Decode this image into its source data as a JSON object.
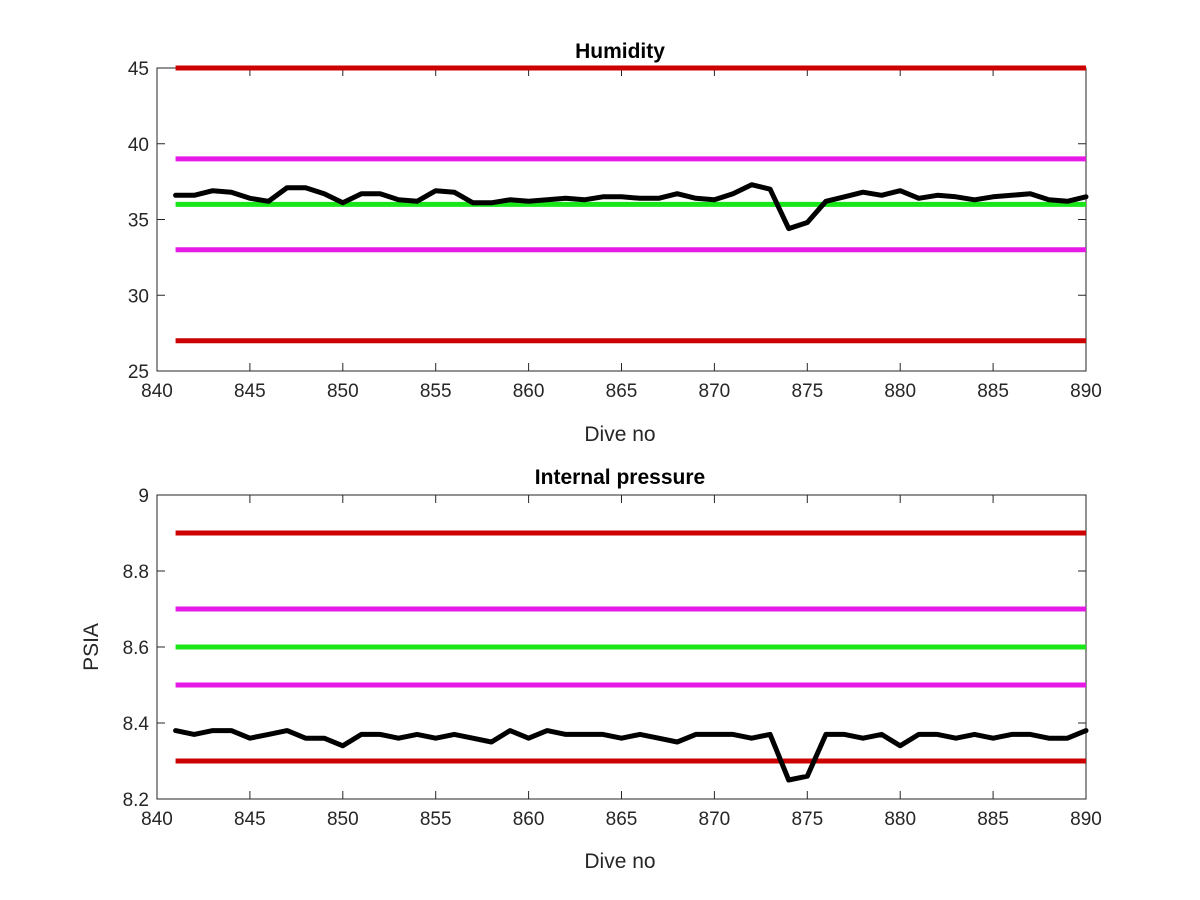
{
  "chart_data": [
    {
      "type": "line",
      "title": "Humidity",
      "xlabel": "Dive no",
      "ylabel": "",
      "xlim": [
        840,
        890
      ],
      "ylim": [
        25,
        45
      ],
      "xticks": [
        "840",
        "845",
        "850",
        "855",
        "860",
        "865",
        "870",
        "875",
        "880",
        "885",
        "890"
      ],
      "yticks": [
        "25",
        "30",
        "35",
        "40",
        "45"
      ],
      "grid": false,
      "reference_lines": [
        {
          "y": 45,
          "color": "#cc0000"
        },
        {
          "y": 39,
          "color": "#e619e6"
        },
        {
          "y": 36,
          "color": "#19e619"
        },
        {
          "y": 33,
          "color": "#e619e6"
        },
        {
          "y": 27,
          "color": "#cc0000"
        }
      ],
      "series": [
        {
          "color": "#000000",
          "x": [
            841,
            842,
            843,
            844,
            845,
            846,
            847,
            848,
            849,
            850,
            851,
            852,
            853,
            854,
            855,
            856,
            857,
            858,
            859,
            860,
            861,
            862,
            863,
            864,
            865,
            866,
            867,
            868,
            869,
            870,
            871,
            872,
            873,
            874,
            875,
            876,
            877,
            878,
            879,
            880,
            881,
            882,
            883,
            884,
            885,
            886,
            887,
            888,
            889,
            890
          ],
          "values": [
            36.6,
            36.6,
            36.9,
            36.8,
            36.4,
            36.2,
            37.1,
            37.1,
            36.7,
            36.1,
            36.7,
            36.7,
            36.3,
            36.2,
            36.9,
            36.8,
            36.1,
            36.1,
            36.3,
            36.2,
            36.3,
            36.4,
            36.3,
            36.5,
            36.5,
            36.4,
            36.4,
            36.7,
            36.4,
            36.3,
            36.7,
            37.3,
            37.0,
            34.4,
            34.8,
            36.2,
            36.5,
            36.8,
            36.6,
            36.9,
            36.4,
            36.6,
            36.5,
            36.3,
            36.5,
            36.6,
            36.7,
            36.3,
            36.2,
            36.5
          ]
        }
      ]
    },
    {
      "type": "line",
      "title": "Internal pressure",
      "xlabel": "Dive no",
      "ylabel": "PSIA",
      "xlim": [
        840,
        890
      ],
      "ylim": [
        8.2,
        9
      ],
      "xticks": [
        "840",
        "845",
        "850",
        "855",
        "860",
        "865",
        "870",
        "875",
        "880",
        "885",
        "890"
      ],
      "yticks": [
        "8.2",
        "8.4",
        "8.6",
        "8.8",
        "9"
      ],
      "grid": false,
      "reference_lines": [
        {
          "y": 8.9,
          "color": "#cc0000"
        },
        {
          "y": 8.7,
          "color": "#e619e6"
        },
        {
          "y": 8.6,
          "color": "#19e619"
        },
        {
          "y": 8.5,
          "color": "#e619e6"
        },
        {
          "y": 8.3,
          "color": "#cc0000"
        }
      ],
      "series": [
        {
          "color": "#000000",
          "x": [
            841,
            842,
            843,
            844,
            845,
            846,
            847,
            848,
            849,
            850,
            851,
            852,
            853,
            854,
            855,
            856,
            857,
            858,
            859,
            860,
            861,
            862,
            863,
            864,
            865,
            866,
            867,
            868,
            869,
            870,
            871,
            872,
            873,
            874,
            875,
            876,
            877,
            878,
            879,
            880,
            881,
            882,
            883,
            884,
            885,
            886,
            887,
            888,
            889,
            890
          ],
          "values": [
            8.38,
            8.37,
            8.38,
            8.38,
            8.36,
            8.37,
            8.38,
            8.36,
            8.36,
            8.34,
            8.37,
            8.37,
            8.36,
            8.37,
            8.36,
            8.37,
            8.36,
            8.35,
            8.38,
            8.36,
            8.38,
            8.37,
            8.37,
            8.37,
            8.36,
            8.37,
            8.36,
            8.35,
            8.37,
            8.37,
            8.37,
            8.36,
            8.37,
            8.25,
            8.26,
            8.37,
            8.37,
            8.36,
            8.37,
            8.34,
            8.37,
            8.37,
            8.36,
            8.37,
            8.36,
            8.37,
            8.37,
            8.36,
            8.36,
            8.38
          ]
        }
      ]
    }
  ]
}
